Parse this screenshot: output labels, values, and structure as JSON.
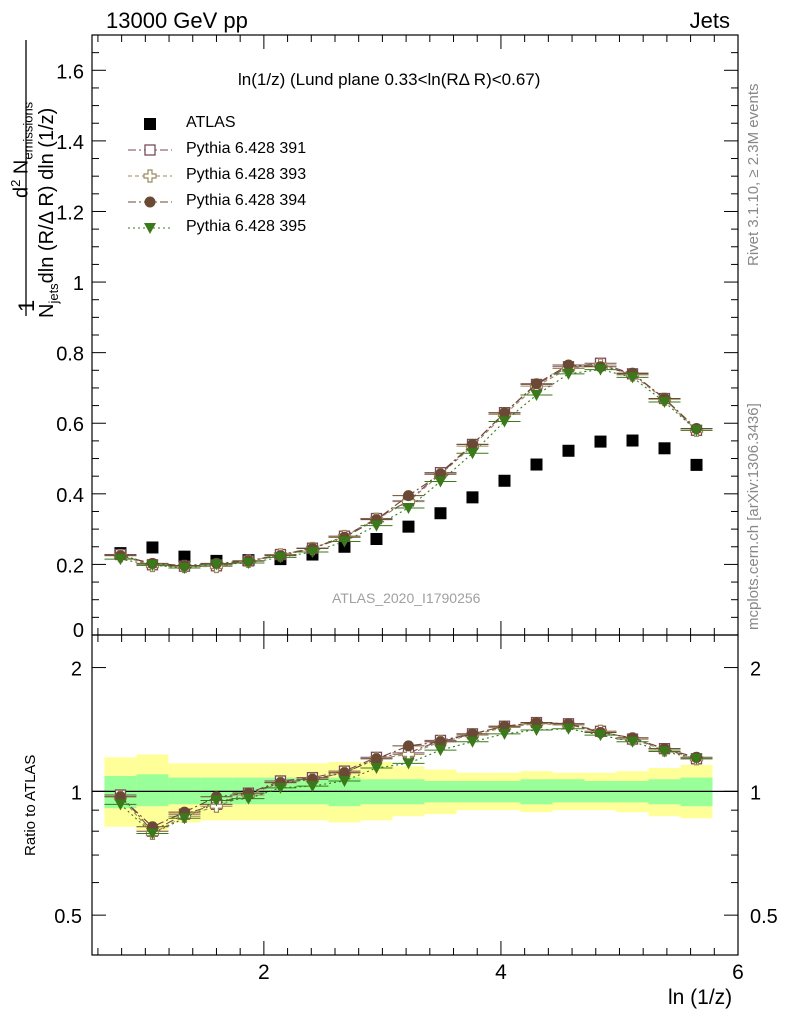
{
  "header": {
    "left": "13000 GeV pp",
    "right": "Jets"
  },
  "plot_title": "ln(1/z) (Lund plane 0.33<ln(RΔ R)<0.67)",
  "watermark": "ATLAS_2020_I1790256",
  "side": {
    "rivet": "Rivet 3.1.10, ≥ 2.3M events",
    "mcplots": "mcplots.cern.ch [arXiv:1306.3436]"
  },
  "axes": {
    "xlabel": "ln (1/z)",
    "ylabel_main": {
      "frac_num_prefix": "d",
      "frac_num_sup": "2",
      "frac_num_N": "N",
      "frac_num_sub": "emissions",
      "frac_den_N": "N",
      "frac_den_sub": "jets",
      "frac_den_rest": "dln (R/Δ R) dln (1/z)",
      "one": "1"
    },
    "ylabel_ratio": "Ratio to ATLAS"
  },
  "colors": {
    "atlas": "#000000",
    "p391": "#7a4a5a",
    "p393": "#9c8a5a",
    "p394": "#6b4a35",
    "p395": "#3a7a1a",
    "band_inner": "#99ff99",
    "band_outer": "#ffff99"
  },
  "chart_data": [
    {
      "type": "scatter",
      "panel": "main",
      "xlim": [
        0.55,
        6.0
      ],
      "ylim": [
        0,
        1.7
      ],
      "x_ticks": [
        "2",
        "4",
        "6"
      ],
      "y_ticks": [
        "0",
        "0.2",
        "0.4",
        "0.6",
        "0.8",
        "1",
        "1.2",
        "1.4",
        "1.6"
      ],
      "x": [
        0.79,
        1.06,
        1.33,
        1.6,
        1.87,
        2.14,
        2.41,
        2.68,
        2.95,
        3.22,
        3.49,
        3.76,
        4.03,
        4.3,
        4.57,
        4.84,
        5.11,
        5.38,
        5.65
      ],
      "series": [
        {
          "name": "ATLAS",
          "marker": "square",
          "values": [
            0.232,
            0.248,
            0.222,
            0.21,
            0.212,
            0.215,
            0.228,
            0.25,
            0.272,
            0.307,
            0.345,
            0.39,
            0.437,
            0.483,
            0.522,
            0.548,
            0.551,
            0.529,
            0.482
          ]
        },
        {
          "name": "Pythia 6.428 391",
          "marker": "open-square",
          "values": [
            0.228,
            0.199,
            0.195,
            0.196,
            0.21,
            0.228,
            0.246,
            0.28,
            0.33,
            0.38,
            0.46,
            0.54,
            0.63,
            0.71,
            0.76,
            0.77,
            0.74,
            0.67,
            0.58
          ]
        },
        {
          "name": "Pythia 6.428 393",
          "marker": "open-cross",
          "values": [
            0.225,
            0.197,
            0.194,
            0.194,
            0.209,
            0.227,
            0.245,
            0.279,
            0.328,
            0.378,
            0.455,
            0.535,
            0.625,
            0.705,
            0.755,
            0.765,
            0.737,
            0.668,
            0.58
          ]
        },
        {
          "name": "Pythia 6.428 394",
          "marker": "circle",
          "values": [
            0.225,
            0.203,
            0.197,
            0.203,
            0.21,
            0.225,
            0.245,
            0.277,
            0.327,
            0.395,
            0.456,
            0.54,
            0.629,
            0.712,
            0.765,
            0.76,
            0.742,
            0.67,
            0.585
          ]
        },
        {
          "name": "Pythia 6.428 395",
          "marker": "triangle-down",
          "values": [
            0.215,
            0.198,
            0.19,
            0.2,
            0.204,
            0.22,
            0.235,
            0.265,
            0.31,
            0.36,
            0.435,
            0.515,
            0.605,
            0.68,
            0.74,
            0.752,
            0.73,
            0.66,
            0.58
          ]
        }
      ],
      "title": "ln(1/z) (Lund plane 0.33<ln(RΔ R)<0.67)",
      "legend": "top-left",
      "grid": false
    },
    {
      "type": "scatter",
      "panel": "ratio",
      "ylabel": "Ratio to ATLAS",
      "xlabel": "ln (1/z)",
      "xlim": [
        0.55,
        6.0
      ],
      "ylim": [
        0.4,
        2.4
      ],
      "log_y": true,
      "y_ticks": [
        "0.5",
        "1",
        "2"
      ],
      "x": [
        0.79,
        1.06,
        1.33,
        1.6,
        1.87,
        2.14,
        2.41,
        2.68,
        2.95,
        3.22,
        3.49,
        3.76,
        4.03,
        4.3,
        4.57,
        4.84,
        5.11,
        5.38,
        5.65
      ],
      "bands": {
        "inner_low": [
          0.91,
          0.92,
          0.93,
          0.93,
          0.93,
          0.93,
          0.93,
          0.92,
          0.93,
          0.93,
          0.94,
          0.94,
          0.94,
          0.93,
          0.94,
          0.94,
          0.94,
          0.93,
          0.92
        ],
        "inner_high": [
          1.09,
          1.1,
          1.08,
          1.08,
          1.08,
          1.08,
          1.08,
          1.08,
          1.07,
          1.07,
          1.06,
          1.06,
          1.06,
          1.07,
          1.07,
          1.06,
          1.06,
          1.07,
          1.08
        ],
        "outer_low": [
          0.82,
          0.8,
          0.84,
          0.85,
          0.85,
          0.85,
          0.85,
          0.84,
          0.85,
          0.87,
          0.88,
          0.9,
          0.9,
          0.89,
          0.9,
          0.9,
          0.89,
          0.87,
          0.86
        ],
        "outer_high": [
          1.21,
          1.23,
          1.17,
          1.17,
          1.17,
          1.17,
          1.17,
          1.18,
          1.18,
          1.15,
          1.13,
          1.11,
          1.11,
          1.12,
          1.11,
          1.11,
          1.12,
          1.14,
          1.16
        ]
      },
      "series": [
        {
          "name": "Pythia 6.428 391",
          "values": [
            0.98,
            0.8,
            0.88,
            0.93,
            0.99,
            1.06,
            1.08,
            1.12,
            1.21,
            1.24,
            1.33,
            1.38,
            1.44,
            1.47,
            1.46,
            1.4,
            1.34,
            1.27,
            1.2
          ]
        },
        {
          "name": "Pythia 6.428 393",
          "values": [
            0.97,
            0.79,
            0.87,
            0.92,
            0.98,
            1.05,
            1.07,
            1.11,
            1.2,
            1.23,
            1.32,
            1.37,
            1.43,
            1.46,
            1.45,
            1.4,
            1.34,
            1.26,
            1.2
          ]
        },
        {
          "name": "Pythia 6.428 394",
          "values": [
            0.97,
            0.82,
            0.89,
            0.97,
            0.99,
            1.05,
            1.07,
            1.11,
            1.2,
            1.29,
            1.32,
            1.38,
            1.44,
            1.47,
            1.46,
            1.39,
            1.35,
            1.27,
            1.21
          ]
        },
        {
          "name": "Pythia 6.428 395",
          "values": [
            0.93,
            0.79,
            0.86,
            0.95,
            0.96,
            1.02,
            1.03,
            1.06,
            1.14,
            1.17,
            1.26,
            1.32,
            1.38,
            1.41,
            1.42,
            1.37,
            1.32,
            1.25,
            1.2
          ]
        }
      ]
    }
  ]
}
